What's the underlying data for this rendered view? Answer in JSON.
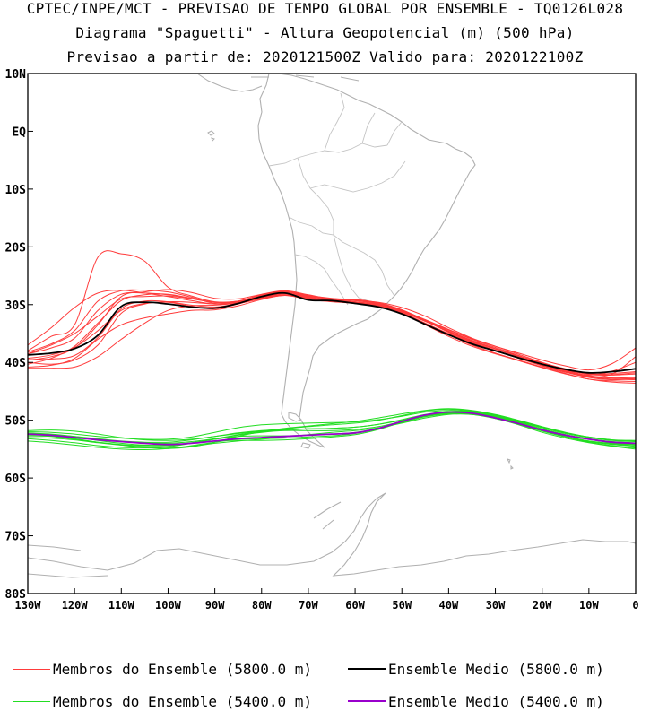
{
  "header": {
    "line1": "CPTEC/INPE/MCT - PREVISAO DE TEMPO GLOBAL POR ENSEMBLE - TQ0126L028",
    "line2": "Diagrama \"Spaguetti\" - Altura Geopotencial (m) (500 hPa)",
    "line3": "Previsao a partir de: 2020121500Z  Valido para: 2020122100Z"
  },
  "map": {
    "lat_labels": [
      "10N",
      "EQ",
      "10S",
      "20S",
      "30S",
      "40S",
      "50S",
      "60S",
      "70S",
      "80S"
    ],
    "lon_labels": [
      "130W",
      "120W",
      "110W",
      "100W",
      "90W",
      "80W",
      "70W",
      "60W",
      "50W",
      "40W",
      "30W",
      "20W",
      "10W",
      "0"
    ],
    "lat_range": [
      -80,
      10
    ],
    "lon_range": [
      -130,
      0
    ]
  },
  "colors": {
    "member_5800": "#ff3b3b",
    "member_5400": "#22dd22",
    "mean_5800": "#000000",
    "mean_5400": "#9900cc",
    "coastline": "#b0b0b0",
    "border": "#c4c4c4"
  },
  "legend": {
    "member_5800_label": "Membros do Ensemble (5800.0 m)",
    "mean_5800_label": "Ensemble Medio (5800.0 m)",
    "member_5400_label": "Membros do Ensemble (5400.0 m)",
    "mean_5400_label": "Ensemble Medio (5400.0 m)"
  },
  "chart_data": {
    "type": "line",
    "description_units": "longitude (deg) vs latitude (deg) of 500 hPa contour",
    "x": [
      -130,
      -125,
      -120,
      -115,
      -110,
      -105,
      -100,
      -95,
      -90,
      -85,
      -80,
      -75,
      -70,
      -65,
      -60,
      -55,
      -50,
      -45,
      -40,
      -35,
      -30,
      -25,
      -20,
      -15,
      -10,
      -5,
      0
    ],
    "series": [
      {
        "name": "Ensemble Medio (5800.0 m)",
        "group": "mean5800",
        "values": [
          -38.7,
          -38.4,
          -37.6,
          -35.3,
          -30.3,
          -29.6,
          -29.9,
          -30.4,
          -30.6,
          -29.8,
          -28.6,
          -28.0,
          -29.2,
          -29.3,
          -29.8,
          -30.4,
          -31.6,
          -33.4,
          -35.2,
          -36.8,
          -38.0,
          -39.2,
          -40.3,
          -41.2,
          -41.8,
          -41.6,
          -41.1
        ]
      },
      {
        "name": "Ensemble Medio (5400.0 m)",
        "group": "mean5400",
        "values": [
          -52.4,
          -52.6,
          -53.0,
          -53.4,
          -53.7,
          -54.0,
          -54.2,
          -54.0,
          -53.6,
          -53.2,
          -53.0,
          -52.8,
          -52.6,
          -52.4,
          -52.2,
          -51.4,
          -50.2,
          -49.1,
          -48.6,
          -48.8,
          -49.6,
          -50.6,
          -51.7,
          -52.6,
          -53.3,
          -53.8,
          -54.0
        ]
      }
    ],
    "members_5800": [
      [
        -38.2,
        -36.8,
        -34.5,
        -29.4,
        -27.6,
        -27.5,
        -27.8,
        -28.7,
        -29.8,
        -29.5,
        -28.4,
        -27.8,
        -28.5,
        -29.1,
        -29.3,
        -29.6,
        -30.5,
        -32.0,
        -34.0,
        -35.8,
        -37.2,
        -38.6,
        -40.0,
        -41.2,
        -42.4,
        -42.0,
        -39.0
      ],
      [
        -39.6,
        -39.0,
        -37.5,
        -33.5,
        -28.6,
        -27.8,
        -27.4,
        -27.9,
        -28.9,
        -29.0,
        -28.2,
        -27.6,
        -28.3,
        -29.0,
        -29.1,
        -29.7,
        -30.9,
        -32.8,
        -34.8,
        -36.5,
        -37.9,
        -39.2,
        -40.5,
        -41.7,
        -42.6,
        -43.0,
        -42.8
      ],
      [
        -40.3,
        -39.3,
        -37.2,
        -33.2,
        -29.3,
        -28.3,
        -28.2,
        -28.9,
        -29.6,
        -29.6,
        -28.8,
        -28.3,
        -28.9,
        -29.4,
        -29.6,
        -30.1,
        -31.4,
        -33.2,
        -35.2,
        -37.0,
        -38.4,
        -39.6,
        -40.8,
        -41.9,
        -42.9,
        -43.2,
        -43.3
      ],
      [
        -37.0,
        -34.0,
        -30.5,
        -28.0,
        -27.5,
        -28.0,
        -28.6,
        -29.3,
        -29.9,
        -29.4,
        -28.3,
        -27.7,
        -28.4,
        -28.9,
        -29.2,
        -29.8,
        -30.9,
        -32.7,
        -34.7,
        -36.4,
        -37.9,
        -39.3,
        -40.6,
        -41.7,
        -42.2,
        -41.5,
        -40.0
      ],
      [
        -38.5,
        -37.5,
        -35.8,
        -31.0,
        -28.2,
        -28.0,
        -28.3,
        -28.9,
        -29.6,
        -29.5,
        -28.7,
        -28.1,
        -28.8,
        -29.2,
        -29.5,
        -30.0,
        -31.1,
        -32.8,
        -34.6,
        -36.2,
        -37.6,
        -39.0,
        -40.3,
        -41.5,
        -42.4,
        -42.7,
        -42.6
      ],
      [
        -38.5,
        -37.0,
        -35.0,
        -32.0,
        -29.0,
        -28.6,
        -28.5,
        -29.0,
        -29.6,
        -29.4,
        -28.5,
        -27.9,
        -28.6,
        -29.0,
        -29.3,
        -29.9,
        -31.0,
        -32.7,
        -34.6,
        -36.3,
        -37.7,
        -39.0,
        -40.2,
        -41.3,
        -42.0,
        -41.9,
        -41.6
      ],
      [
        -39.5,
        -39.4,
        -38.8,
        -35.7,
        -30.7,
        -29.4,
        -29.5,
        -30.1,
        -30.4,
        -29.8,
        -28.9,
        -28.3,
        -28.9,
        -29.3,
        -29.7,
        -30.2,
        -31.3,
        -32.9,
        -34.6,
        -36.2,
        -37.6,
        -38.9,
        -40.3,
        -41.4,
        -42.3,
        -42.7,
        -42.8
      ],
      [
        -40.0,
        -40.3,
        -39.6,
        -37.0,
        -31.5,
        -29.9,
        -29.5,
        -29.6,
        -29.9,
        -29.8,
        -29.0,
        -28.4,
        -29.0,
        -29.4,
        -29.7,
        -30.3,
        -31.6,
        -33.5,
        -35.5,
        -37.2,
        -38.5,
        -39.7,
        -40.9,
        -42.0,
        -42.9,
        -43.4,
        -43.6
      ],
      [
        -40.8,
        -40.5,
        -39.3,
        -36.0,
        -33.5,
        -32.3,
        -31.6,
        -31.0,
        -30.9,
        -30.2,
        -29.1,
        -28.4,
        -29.1,
        -29.5,
        -29.8,
        -30.3,
        -31.5,
        -33.2,
        -35.0,
        -36.6,
        -38.0,
        -39.3,
        -40.5,
        -41.6,
        -42.5,
        -42.9,
        -43.0
      ],
      [
        -39.3,
        -38.7,
        -37.4,
        -34.5,
        -31.0,
        -29.8,
        -29.6,
        -30.3,
        -30.7,
        -29.9,
        -28.8,
        -28.1,
        -28.7,
        -29.2,
        -29.5,
        -30.0,
        -31.1,
        -32.7,
        -34.4,
        -36.0,
        -37.4,
        -38.8,
        -40.1,
        -41.2,
        -42.1,
        -42.2,
        -42.0
      ],
      [
        -38.0,
        -35.5,
        -33.5,
        -21.8,
        -21.2,
        -22.5,
        -27.0,
        -28.5,
        -29.5,
        -29.4,
        -28.4,
        -27.8,
        -28.5,
        -29.0,
        -29.3,
        -29.9,
        -31.0,
        -32.6,
        -34.3,
        -35.9,
        -37.2,
        -38.4,
        -39.6,
        -40.6,
        -41.3,
        -40.2,
        -37.5
      ],
      [
        -41.0,
        -41.0,
        -40.8,
        -39.0,
        -36.0,
        -33.2,
        -31.0,
        -30.2,
        -30.1,
        -29.7,
        -28.9,
        -28.3,
        -28.9,
        -29.3,
        -29.6,
        -30.1,
        -31.2,
        -32.8,
        -34.6,
        -36.2,
        -37.6,
        -38.9,
        -40.1,
        -41.1,
        -41.9,
        -42.1,
        -41.8
      ]
    ],
    "members_5400": [
      [
        -52.0,
        -52.1,
        -52.4,
        -52.8,
        -53.1,
        -53.3,
        -53.3,
        -52.9,
        -52.1,
        -51.3,
        -50.8,
        -50.6,
        -50.5,
        -50.4,
        -50.3,
        -49.9,
        -49.3,
        -48.6,
        -48.3,
        -48.5,
        -49.2,
        -50.2,
        -51.3,
        -52.3,
        -53.0,
        -53.5,
        -53.7
      ],
      [
        -52.5,
        -52.7,
        -53.2,
        -53.8,
        -54.3,
        -54.7,
        -54.9,
        -54.6,
        -53.8,
        -52.8,
        -52.0,
        -51.7,
        -51.5,
        -51.4,
        -51.2,
        -50.7,
        -49.9,
        -49.0,
        -48.5,
        -48.6,
        -49.3,
        -50.3,
        -51.5,
        -52.5,
        -53.3,
        -53.9,
        -54.2
      ],
      [
        -53.2,
        -53.5,
        -53.9,
        -54.4,
        -54.7,
        -54.8,
        -54.6,
        -54.0,
        -53.3,
        -52.6,
        -52.1,
        -51.8,
        -51.8,
        -51.8,
        -51.6,
        -51.1,
        -50.2,
        -49.3,
        -48.8,
        -48.9,
        -49.6,
        -50.7,
        -51.9,
        -52.9,
        -53.7,
        -54.2,
        -54.5
      ],
      [
        -52.3,
        -52.5,
        -52.9,
        -53.5,
        -54.0,
        -54.3,
        -54.3,
        -53.9,
        -53.3,
        -52.8,
        -52.7,
        -52.7,
        -52.6,
        -52.4,
        -52.1,
        -51.4,
        -50.4,
        -49.4,
        -48.9,
        -49.0,
        -49.7,
        -50.7,
        -51.8,
        -52.8,
        -53.6,
        -54.0,
        -54.3
      ],
      [
        -51.8,
        -51.7,
        -51.9,
        -52.4,
        -53.0,
        -53.4,
        -53.5,
        -53.3,
        -52.8,
        -52.3,
        -51.9,
        -51.5,
        -51.1,
        -50.8,
        -50.5,
        -50.0,
        -49.2,
        -48.4,
        -48.1,
        -48.4,
        -49.1,
        -50.1,
        -51.2,
        -52.2,
        -52.9,
        -53.4,
        -53.5
      ],
      [
        -52.7,
        -52.8,
        -53.3,
        -53.8,
        -54.2,
        -54.4,
        -54.4,
        -54.0,
        -53.6,
        -53.5,
        -53.5,
        -53.4,
        -53.2,
        -52.9,
        -52.5,
        -51.6,
        -50.3,
        -49.1,
        -48.5,
        -48.6,
        -49.4,
        -50.5,
        -51.8,
        -52.9,
        -53.8,
        -54.4,
        -54.8
      ],
      [
        -53.6,
        -53.9,
        -54.3,
        -54.7,
        -55.0,
        -55.1,
        -54.9,
        -54.4,
        -53.8,
        -53.3,
        -53.2,
        -53.1,
        -52.9,
        -52.7,
        -52.3,
        -51.5,
        -50.4,
        -49.3,
        -48.8,
        -48.9,
        -49.7,
        -50.8,
        -52.1,
        -53.1,
        -53.9,
        -54.5,
        -55.0
      ],
      [
        -52.2,
        -52.4,
        -52.8,
        -53.3,
        -53.7,
        -53.9,
        -54.0,
        -53.7,
        -53.2,
        -52.5,
        -51.9,
        -51.4,
        -51.0,
        -50.6,
        -50.2,
        -49.6,
        -48.9,
        -48.3,
        -48.0,
        -48.3,
        -49.0,
        -50.0,
        -51.1,
        -52.1,
        -52.9,
        -53.4,
        -53.6
      ],
      [
        -53.0,
        -53.1,
        -53.4,
        -53.9,
        -54.3,
        -54.6,
        -54.7,
        -54.5,
        -54.0,
        -53.6,
        -53.3,
        -52.9,
        -52.5,
        -52.1,
        -51.8,
        -51.3,
        -50.5,
        -49.6,
        -49.0,
        -49.0,
        -49.6,
        -50.6,
        -51.8,
        -52.8,
        -53.6,
        -54.1,
        -54.3
      ],
      [
        -52.4,
        -52.5,
        -52.8,
        -53.2,
        -53.6,
        -53.8,
        -53.8,
        -53.4,
        -52.8,
        -52.2,
        -51.8,
        -51.6,
        -51.5,
        -51.4,
        -51.2,
        -50.7,
        -50.0,
        -49.2,
        -48.7,
        -48.7,
        -49.4,
        -50.4,
        -51.5,
        -52.5,
        -53.2,
        -53.7,
        -53.9
      ]
    ]
  }
}
